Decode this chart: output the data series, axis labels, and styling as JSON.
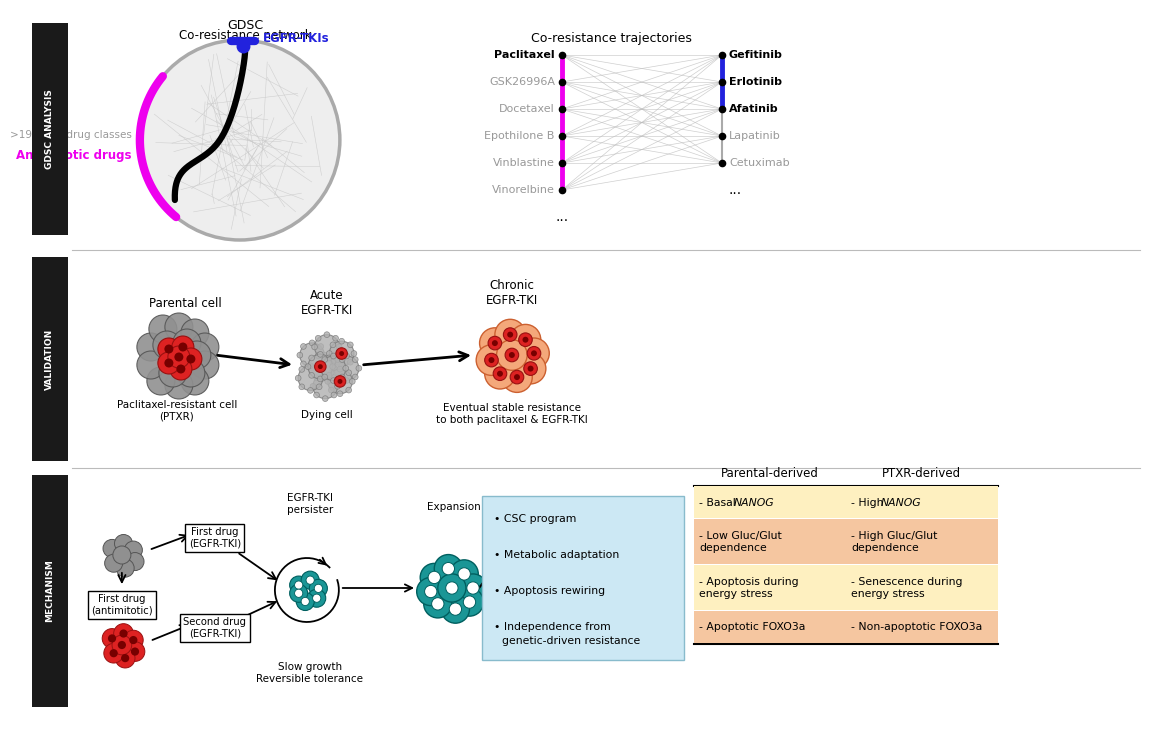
{
  "bg_color": "#ffffff",
  "sidebar_color": "#1a1a1a",
  "sidebar_text_color": "#ffffff",
  "network_title_line1": "GDSC",
  "network_title_line2": "Co-resistance network",
  "egfr_tki_label": "EGFR-TKIs",
  "antimitotic_label": "Antimitotic drugs",
  "other_label": ">19 other drug classes",
  "trajectory_title": "Co-resistance trajectories",
  "left_drugs": [
    "Paclitaxel",
    "GSK26996A",
    "Docetaxel",
    "Epothilone B",
    "Vinblastine",
    "Vinorelbine"
  ],
  "right_drugs_bold": [
    "Gefitinib",
    "Erlotinib",
    "Afatinib"
  ],
  "right_drugs_normal": [
    "Lapatinib",
    "Cetuximab"
  ],
  "parental_label": "Parental cell",
  "ptxr_label": "Paclitaxel-resistant cell\n(PTXR)",
  "acute_label": "Acute\nEGFR-TKI",
  "dying_label": "Dying cell",
  "chronic_label": "Chronic\nEGFR-TKI",
  "stable_label": "Eventual stable resistance\nto both paclitaxel & EGFR-TKI",
  "first_drug_anti": "First drug\n(antimitotic)",
  "first_drug_egfr": "First drug\n(EGFR-TKI)",
  "second_drug_egfr": "Second drug\n(EGFR-TKI)",
  "persister_label": "EGFR-TKI\npersister",
  "expansion_label": "Expansion",
  "slow_growth_label": "Slow growth\nReversible tolerance",
  "csc_items": [
    "CSC program",
    "Metabolic adaptation",
    "Apoptosis rewiring",
    "Independence from\ngenetic-driven resistance"
  ],
  "table_headers": [
    "Parental-derived",
    "PTXR-derived"
  ],
  "table_rows": [
    [
      "- Basal ",
      "NANOG",
      "",
      "- High ",
      "NANOG",
      ""
    ],
    [
      "- Low Gluc/Glut\ndependence",
      "",
      "",
      "- High Gluc/Glut\ndependence",
      "",
      ""
    ],
    [
      "- Apoptosis during\nenergy stress",
      "",
      "",
      "- Senescence during\nenergy stress",
      "",
      ""
    ],
    [
      "- Apoptotic FOXO3a",
      "",
      "",
      "- Non-apoptotic FOXO3a",
      "",
      ""
    ]
  ],
  "table_row_colors": [
    "#fef0c0",
    "#f5c6a0",
    "#fef0c0",
    "#f5c6a0"
  ],
  "blue_box_color": "#cce8f4",
  "magenta_color": "#ee00ee",
  "blue_color": "#2222dd",
  "teal_color": "#1a9696",
  "teal_dark": "#005f5f",
  "orange_cell": "#f4a87a",
  "orange_dark": "#cc6030",
  "red_cell": "#dd2222",
  "red_dark": "#991111",
  "dark_red": "#770000",
  "gray_cell": "#909090",
  "gray_dark": "#555555",
  "gray_light_cell": "#bbbbbb",
  "section_divider_color": "#bbbbbb"
}
